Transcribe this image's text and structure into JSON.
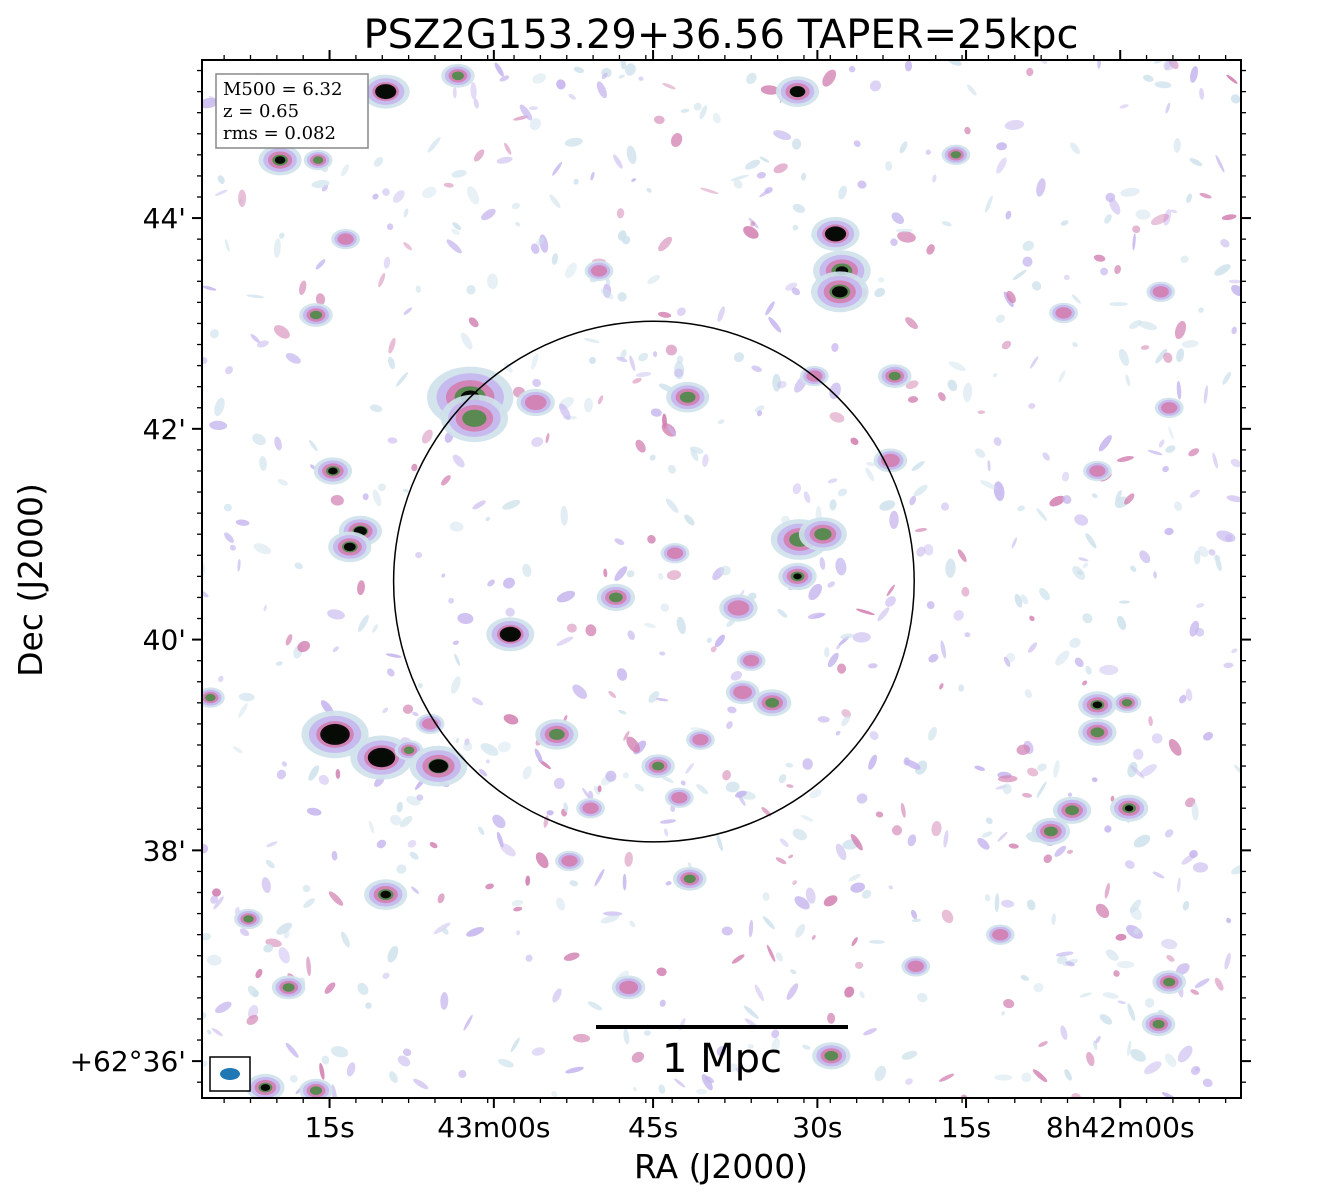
{
  "chart_data": {
    "type": "heatmap",
    "title": "PSZ2G153.29+36.56 TAPER=25kpc",
    "xlabel": "RA (J2000)",
    "ylabel": "Dec (J2000)",
    "xlim_arcsec_offset": [
      -119.0,
      127.0
    ],
    "ylim_arcmin": [
      35.65,
      45.5
    ],
    "x_ticks": [
      {
        "offset_s": -88.8,
        "label": "15s"
      },
      {
        "offset_s": -49.9,
        "label": "43m00s"
      },
      {
        "offset_s": -12.2,
        "label": "45s"
      },
      {
        "offset_s": 26.7,
        "label": "30s"
      },
      {
        "offset_s": 61.9,
        "label": "15s"
      },
      {
        "offset_s": 98.4,
        "label": "8h42m00s"
      }
    ],
    "y_ticks": [
      {
        "dec_arcmin": 44,
        "label": "44'"
      },
      {
        "dec_arcmin": 42,
        "label": "42'"
      },
      {
        "dec_arcmin": 40,
        "label": "40'"
      },
      {
        "dec_arcmin": 38,
        "label": "38'"
      },
      {
        "dec_arcmin": 36,
        "label": "+62°36'"
      }
    ],
    "grid": false,
    "colormap": {
      "low": "#ffffff",
      "mid1": "#cfe2ec",
      "mid2": "#c6b6ee",
      "mid3": "#d17fb0",
      "mid4": "#4f8a4a",
      "high": "#000000"
    },
    "info_box": {
      "lines": [
        "M500 = 6.32",
        "z = 0.65",
        "rms = 0.082"
      ],
      "position": "top-left"
    },
    "r500_circle": {
      "center_offset_s": -12.0,
      "center_dec": 40.55,
      "radius_arcmin": 2.47
    },
    "scalebar": {
      "label": "1 Mpc",
      "position": "bottom-center"
    },
    "beam": {
      "position": "bottom-left",
      "color": "#1f77b4"
    },
    "sources": [
      {
        "x": -75.5,
        "y": 45.2,
        "flux": 1.0,
        "size": 1.0
      },
      {
        "x": -58.4,
        "y": 45.35,
        "flux": 0.55,
        "size": 0.7
      },
      {
        "x": 22.0,
        "y": 45.2,
        "flux": 0.85,
        "size": 0.9
      },
      {
        "x": 59.5,
        "y": 44.6,
        "flux": 0.45,
        "size": 0.6
      },
      {
        "x": -100.5,
        "y": 44.55,
        "flux": 0.65,
        "size": 0.9
      },
      {
        "x": -91.5,
        "y": 44.55,
        "flux": 0.4,
        "size": 0.6
      },
      {
        "x": 31.0,
        "y": 43.85,
        "flux": 1.0,
        "size": 1.0
      },
      {
        "x": 32.5,
        "y": 43.5,
        "flux": 0.6,
        "size": 1.2
      },
      {
        "x": 32.0,
        "y": 43.3,
        "flux": 0.7,
        "size": 1.2
      },
      {
        "x": -92.0,
        "y": 43.08,
        "flux": 0.4,
        "size": 0.7
      },
      {
        "x": -55.5,
        "y": 42.3,
        "flux": 0.6,
        "size": 1.8
      },
      {
        "x": -54.5,
        "y": 42.1,
        "flux": 0.45,
        "size": 1.4
      },
      {
        "x": -40.0,
        "y": 42.25,
        "flux": 0.35,
        "size": 0.8
      },
      {
        "x": 26.0,
        "y": 42.5,
        "flux": 0.3,
        "size": 0.6
      },
      {
        "x": 45.0,
        "y": 42.5,
        "flux": 0.4,
        "size": 0.7
      },
      {
        "x": -4.0,
        "y": 42.3,
        "flux": 0.4,
        "size": 0.9
      },
      {
        "x": -88.0,
        "y": 41.6,
        "flux": 0.65,
        "size": 0.8
      },
      {
        "x": -81.5,
        "y": 41.03,
        "flux": 0.75,
        "size": 0.9
      },
      {
        "x": -84.0,
        "y": 40.88,
        "flux": 0.7,
        "size": 0.9
      },
      {
        "x": 22.5,
        "y": 40.95,
        "flux": 0.4,
        "size": 1.2
      },
      {
        "x": 28.0,
        "y": 41.0,
        "flux": 0.4,
        "size": 1.0
      },
      {
        "x": 22.0,
        "y": 40.6,
        "flux": 0.6,
        "size": 0.8
      },
      {
        "x": -7.0,
        "y": 40.82,
        "flux": 0.35,
        "size": 0.6
      },
      {
        "x": -21.0,
        "y": 40.4,
        "flux": 0.5,
        "size": 0.8
      },
      {
        "x": 8.0,
        "y": 40.3,
        "flux": 0.3,
        "size": 0.8
      },
      {
        "x": -46.0,
        "y": 40.05,
        "flux": 1.0,
        "size": 1.0
      },
      {
        "x": 11.0,
        "y": 39.8,
        "flux": 0.3,
        "size": 0.6
      },
      {
        "x": 16.0,
        "y": 39.4,
        "flux": 0.5,
        "size": 0.8
      },
      {
        "x": 9.0,
        "y": 39.5,
        "flux": 0.3,
        "size": 0.7
      },
      {
        "x": -35.0,
        "y": 39.1,
        "flux": 0.45,
        "size": 0.9
      },
      {
        "x": -11.0,
        "y": 38.8,
        "flux": 0.4,
        "size": 0.7
      },
      {
        "x": -1.0,
        "y": 39.05,
        "flux": 0.3,
        "size": 0.6
      },
      {
        "x": -117.0,
        "y": 39.45,
        "flux": 0.45,
        "size": 0.6
      },
      {
        "x": -87.5,
        "y": 39.1,
        "flux": 1.0,
        "size": 1.4
      },
      {
        "x": -65.0,
        "y": 39.2,
        "flux": 0.35,
        "size": 0.6
      },
      {
        "x": -76.5,
        "y": 38.88,
        "flux": 1.0,
        "size": 1.3
      },
      {
        "x": -70.0,
        "y": 38.95,
        "flux": 0.4,
        "size": 0.6
      },
      {
        "x": -63.0,
        "y": 38.8,
        "flux": 0.8,
        "size": 1.2
      },
      {
        "x": -27.0,
        "y": 38.4,
        "flux": 0.3,
        "size": 0.6
      },
      {
        "x": -6.0,
        "y": 38.5,
        "flux": 0.35,
        "size": 0.6
      },
      {
        "x": 93.0,
        "y": 39.38,
        "flux": 0.65,
        "size": 0.8
      },
      {
        "x": 93.0,
        "y": 39.12,
        "flux": 0.55,
        "size": 0.8
      },
      {
        "x": 100.0,
        "y": 39.4,
        "flux": 0.4,
        "size": 0.6
      },
      {
        "x": 100.5,
        "y": 38.4,
        "flux": 0.6,
        "size": 0.8
      },
      {
        "x": 87.0,
        "y": 38.38,
        "flux": 0.5,
        "size": 0.8
      },
      {
        "x": 82.0,
        "y": 38.18,
        "flux": 0.55,
        "size": 0.8
      },
      {
        "x": 93.0,
        "y": 41.6,
        "flux": 0.3,
        "size": 0.6
      },
      {
        "x": 44.0,
        "y": 41.7,
        "flux": 0.35,
        "size": 0.7
      },
      {
        "x": 110.0,
        "y": 42.2,
        "flux": 0.3,
        "size": 0.6
      },
      {
        "x": -75.5,
        "y": 37.58,
        "flux": 0.65,
        "size": 0.9
      },
      {
        "x": -3.5,
        "y": 37.73,
        "flux": 0.55,
        "size": 0.7
      },
      {
        "x": -108.0,
        "y": 37.35,
        "flux": 0.45,
        "size": 0.6
      },
      {
        "x": -32.0,
        "y": 37.9,
        "flux": 0.3,
        "size": 0.6
      },
      {
        "x": -18.0,
        "y": 36.7,
        "flux": 0.35,
        "size": 0.7
      },
      {
        "x": -98.5,
        "y": 36.7,
        "flux": 0.45,
        "size": 0.7
      },
      {
        "x": 30.0,
        "y": 36.05,
        "flux": 0.5,
        "size": 0.8
      },
      {
        "x": 110.0,
        "y": 36.75,
        "flux": 0.45,
        "size": 0.7
      },
      {
        "x": 107.5,
        "y": 36.35,
        "flux": 0.45,
        "size": 0.7
      },
      {
        "x": -104.0,
        "y": 35.75,
        "flux": 0.65,
        "size": 0.8
      },
      {
        "x": -92.0,
        "y": 35.72,
        "flux": 0.5,
        "size": 0.7
      },
      {
        "x": 50.0,
        "y": 36.9,
        "flux": 0.3,
        "size": 0.6
      },
      {
        "x": 70.0,
        "y": 37.2,
        "flux": 0.3,
        "size": 0.6
      },
      {
        "x": -25.0,
        "y": 43.5,
        "flux": 0.3,
        "size": 0.6
      },
      {
        "x": -85.0,
        "y": 43.8,
        "flux": 0.3,
        "size": 0.6
      },
      {
        "x": 85.0,
        "y": 43.1,
        "flux": 0.35,
        "size": 0.6
      },
      {
        "x": 108.0,
        "y": 43.3,
        "flux": 0.3,
        "size": 0.6
      }
    ]
  }
}
